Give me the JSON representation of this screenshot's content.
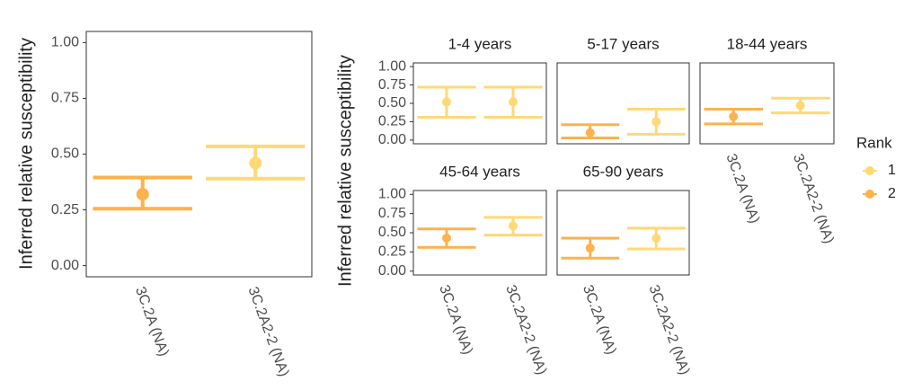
{
  "chart_data": [
    {
      "type": "errorbar",
      "y_label": "Inferred relative susceptibility",
      "categories": [
        "3C.2A (NA)",
        "3C.2A2-2 (NA)"
      ],
      "ylim": [
        -0.05,
        1.05
      ],
      "yticks": [
        {
          "value": 0,
          "label": "0.00"
        },
        0.25,
        {
          "value": 0.5,
          "label": "0.50"
        },
        0.75,
        {
          "value": 1,
          "label": "1.00"
        }
      ],
      "series": [
        {
          "color": "#fed976",
          "values": [
            null,
            0.46
          ],
          "lower": [
            null,
            0.39
          ],
          "upper": [
            null,
            0.535
          ]
        },
        {
          "color": "#feb24c",
          "values": [
            0.32,
            null
          ],
          "lower": [
            0.255,
            null
          ],
          "upper": [
            0.395,
            null
          ]
        }
      ]
    },
    {
      "type": "errorbar",
      "y_label": "Inferred relative susceptibility",
      "categories": [
        "3C.2A (NA)",
        "3C.2A2-2 (NA)"
      ],
      "ylim": [
        -0.05,
        1.05
      ],
      "yticks": [
        {
          "value": 0,
          "label": "0.00"
        },
        0.25,
        {
          "value": 0.5,
          "label": "0.50"
        },
        0.75,
        {
          "value": 1,
          "label": "1.00"
        }
      ],
      "legend_title": "Rank",
      "series": [
        {
          "name": "1",
          "color": "#fed976"
        },
        {
          "name": "2",
          "color": "#feb24c"
        }
      ],
      "panels": [
        {
          "title": "1-4 years",
          "series": [
            {
              "values": [
                0.52,
                0.52
              ],
              "lower": [
                0.31,
                0.31
              ],
              "upper": [
                0.72,
                0.72
              ]
            },
            {
              "values": [
                null,
                null
              ],
              "lower": [
                null,
                null
              ],
              "upper": [
                null,
                null
              ]
            }
          ]
        },
        {
          "title": "5-17 years",
          "series": [
            {
              "values": [
                null,
                0.25
              ],
              "lower": [
                null,
                0.08
              ],
              "upper": [
                null,
                0.42
              ]
            },
            {
              "values": [
                0.1,
                null
              ],
              "lower": [
                0.03,
                null
              ],
              "upper": [
                0.21,
                null
              ]
            }
          ]
        },
        {
          "title": "18-44 years",
          "series": [
            {
              "values": [
                null,
                0.47
              ],
              "lower": [
                null,
                0.37
              ],
              "upper": [
                null,
                0.57
              ]
            },
            {
              "values": [
                0.32,
                null
              ],
              "lower": [
                0.22,
                null
              ],
              "upper": [
                0.42,
                null
              ]
            }
          ]
        },
        {
          "title": "45-64 years",
          "series": [
            {
              "values": [
                null,
                0.59
              ],
              "lower": [
                null,
                0.47
              ],
              "upper": [
                null,
                0.7
              ]
            },
            {
              "values": [
                0.43,
                null
              ],
              "lower": [
                0.31,
                null
              ],
              "upper": [
                0.55,
                null
              ]
            }
          ]
        },
        {
          "title": "65-90 years",
          "series": [
            {
              "values": [
                null,
                0.43
              ],
              "lower": [
                null,
                0.29
              ],
              "upper": [
                null,
                0.56
              ]
            },
            {
              "values": [
                0.3,
                null
              ],
              "lower": [
                0.17,
                null
              ],
              "upper": [
                0.43,
                null
              ]
            }
          ]
        }
      ]
    }
  ]
}
